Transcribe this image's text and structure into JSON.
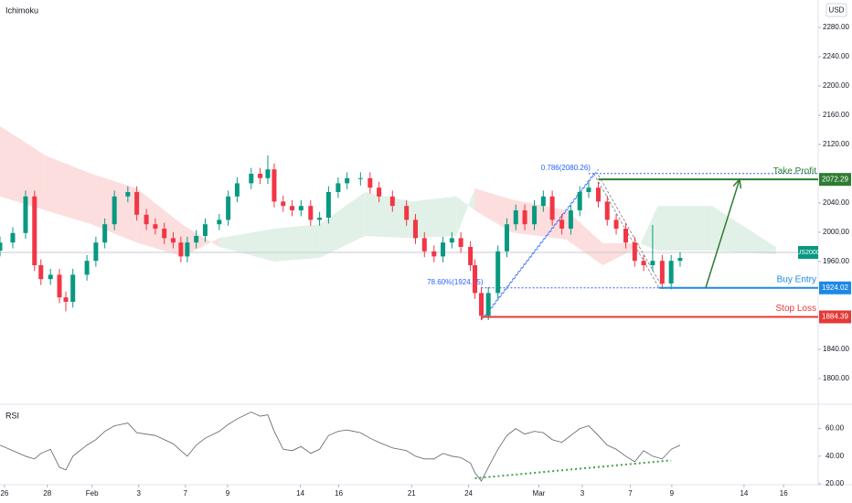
{
  "chart_data": {
    "type": "candlestick",
    "indicator_label": "Ichimoku",
    "currency": "USD",
    "xlim": [
      0,
      128
    ],
    "xticks": [
      {
        "value": 0.7,
        "label": "26"
      },
      {
        "value": 7.4,
        "label": "28"
      },
      {
        "value": 14.4,
        "label": "Feb"
      },
      {
        "value": 21.7,
        "label": "3"
      },
      {
        "value": 29,
        "label": "7"
      },
      {
        "value": 35.6,
        "label": "9"
      },
      {
        "value": 47,
        "label": "14"
      },
      {
        "value": 53,
        "label": "16"
      },
      {
        "value": 64.4,
        "label": "21"
      },
      {
        "value": 73.3,
        "label": "24"
      },
      {
        "value": 84.3,
        "label": "Mar"
      },
      {
        "value": 91.1,
        "label": "3"
      },
      {
        "value": 98.6,
        "label": "7"
      },
      {
        "value": 105.1,
        "label": "9"
      },
      {
        "value": 116.4,
        "label": "14"
      },
      {
        "value": 122.6,
        "label": "16"
      }
    ],
    "ylim": [
      1767.5,
      2317.5
    ],
    "yticks": [
      {
        "value": 1800,
        "label": "1800.00"
      },
      {
        "value": 1840,
        "label": "1840.00"
      },
      {
        "value": 1960,
        "label": "1960.00"
      },
      {
        "value": 2000,
        "label": "2000.00"
      },
      {
        "value": 2040,
        "label": "2040.00"
      },
      {
        "value": 2120,
        "label": "2120.00"
      },
      {
        "value": 2160,
        "label": "2160.00"
      },
      {
        "value": 2200,
        "label": "2200.00"
      },
      {
        "value": 2240,
        "label": "2240.00"
      },
      {
        "value": 2280,
        "label": "2280.00"
      }
    ],
    "candles": {
      "up_color": "#089981",
      "down_color": "#f23645",
      "x": [
        0,
        2,
        4,
        5.4,
        6.4,
        7.9,
        9.3,
        10.3,
        11.4,
        13.6,
        15,
        16.4,
        17.9,
        20,
        21.4,
        22.9,
        24.3,
        25.7,
        27.1,
        28.3,
        29.3,
        30.7,
        32.1,
        34.3,
        35.7,
        37.1,
        39.3,
        40.7,
        41.9,
        42.9,
        44.3,
        45.7,
        47.1,
        48.6,
        50,
        51.4,
        52.9,
        54.3,
        56.4,
        57.9,
        59.3,
        61.4,
        63.6,
        65,
        66.4,
        67.9,
        69.3,
        70.7,
        72.1,
        73.6,
        74.3,
        75.3,
        76.4,
        77.9,
        79.3,
        80.7,
        82.1,
        83.6,
        85,
        86.4,
        87.9,
        89.3,
        90.7,
        92.1,
        93.6,
        95,
        96.4,
        97.9,
        99.3,
        100.7,
        102.1,
        103.6,
        105,
        106.4
      ],
      "open": [
        1975,
        1986,
        1999,
        2049,
        1955,
        1936,
        1942,
        1911,
        1905,
        1942,
        1961,
        1986,
        2011,
        2049,
        2055,
        2024,
        2011,
        2005,
        1992,
        1986,
        1967,
        1986,
        1995,
        2011,
        2017,
        2049,
        2067,
        2080,
        2074,
        2086,
        2042,
        2036,
        2030,
        2036,
        2017,
        2020,
        2055,
        2067,
        2074,
        2074,
        2061,
        2049,
        2036,
        2017,
        1992,
        1974,
        1967,
        1986,
        1992,
        1980,
        1955,
        1917,
        1886,
        1917,
        1974,
        2011,
        2030,
        2011,
        2036,
        2049,
        2017,
        2005,
        2030,
        2055,
        2061,
        2042,
        2017,
        2005,
        1986,
        1961,
        1955,
        1961,
        1930,
        1961
      ],
      "high": [
        1994,
        2007,
        2057,
        2057,
        1963,
        1950,
        1950,
        1919,
        1950,
        1969,
        1994,
        2019,
        2057,
        2063,
        2063,
        2032,
        2019,
        2013,
        2000,
        1994,
        1994,
        2003,
        2019,
        2025,
        2057,
        2075,
        2088,
        2088,
        2105,
        2094,
        2050,
        2044,
        2044,
        2044,
        2028,
        2063,
        2075,
        2082,
        2082,
        2082,
        2069,
        2057,
        2044,
        2025,
        2000,
        1982,
        1994,
        2000,
        2000,
        1988,
        1963,
        1925,
        1925,
        1982,
        2019,
        2038,
        2038,
        2044,
        2057,
        2057,
        2025,
        2038,
        2063,
        2069,
        2069,
        2050,
        2025,
        2013,
        1994,
        1969,
        2010,
        1969,
        1969,
        1973
      ],
      "low": [
        1967,
        1978,
        1991,
        1947,
        1928,
        1928,
        1903,
        1892,
        1897,
        1934,
        1953,
        1978,
        2003,
        2041,
        2016,
        2003,
        1997,
        1984,
        1978,
        1959,
        1959,
        1978,
        1987,
        2003,
        2009,
        2041,
        2059,
        2066,
        2066,
        2034,
        2028,
        2022,
        2022,
        2009,
        2009,
        2012,
        2047,
        2059,
        2064,
        2053,
        2041,
        2028,
        2009,
        1984,
        1966,
        1959,
        1959,
        1978,
        1972,
        1947,
        1909,
        1880,
        1880,
        1909,
        1966,
        2003,
        2003,
        2003,
        2028,
        2009,
        1997,
        1997,
        2022,
        2047,
        2034,
        2009,
        1997,
        1978,
        1953,
        1947,
        1947,
        1924,
        1922,
        1953
      ],
      "close": [
        1986,
        1999,
        2049,
        1955,
        1936,
        1942,
        1911,
        1905,
        1942,
        1961,
        1986,
        2011,
        2049,
        2055,
        2024,
        2011,
        2005,
        1992,
        1986,
        1967,
        1986,
        1995,
        2011,
        2017,
        2049,
        2067,
        2080,
        2074,
        2086,
        2042,
        2036,
        2030,
        2036,
        2017,
        2020,
        2055,
        2067,
        2074,
        2074,
        2061,
        2049,
        2036,
        2017,
        1992,
        1974,
        1967,
        1986,
        1992,
        1980,
        1955,
        1917,
        1886,
        1917,
        1974,
        2011,
        2030,
        2011,
        2036,
        2049,
        2017,
        2005,
        2030,
        2055,
        2061,
        2042,
        2017,
        2005,
        1986,
        1961,
        1955,
        1961,
        1930,
        1961,
        1965
      ]
    },
    "cloud": {
      "up_color": "#e2f1e7",
      "down_color": "#fcdede",
      "x": [
        0,
        7.1,
        14.3,
        21.4,
        28.6,
        34.3,
        42.9,
        50,
        57.1,
        64.3,
        71.4,
        74.3,
        80,
        88.6,
        94.3,
        100,
        102.9,
        111.4,
        121.4
      ],
      "span_a": [
        2049,
        2030,
        2011,
        1986,
        1967,
        1992,
        2005,
        2011,
        2055,
        2042,
        2049,
        2030,
        2000,
        1990,
        1955,
        1980,
        2036,
        2036,
        1980
      ],
      "span_b": [
        2145,
        2105,
        2080,
        2060,
        2010,
        1980,
        1960,
        1965,
        1995,
        1992,
        1995,
        2060,
        2045,
        2030,
        1985,
        1985,
        1975,
        1975,
        1970
      ]
    },
    "current_price": {
      "label": "US2000",
      "value": 1972.5,
      "color": "#089981"
    },
    "levels": [
      {
        "label": "Take Profit",
        "value": 2072.29,
        "color": "#2e7d32",
        "x_start": 93.6
      },
      {
        "label": "Buy Entry",
        "value": 1924.02,
        "color": "#1e88e5",
        "x_start": 103.1
      },
      {
        "label": "Stop Loss",
        "value": 1884.39,
        "color": "#e53935",
        "x_start": 75.3
      }
    ],
    "fib_levels": [
      {
        "label": "0.786(2080.26)",
        "value": 2080.26,
        "x_start": 92.1,
        "color": "#2962ff"
      },
      {
        "label": "78.60%(1924.05)",
        "value": 1924.05,
        "x_start": 75.3,
        "x_end": 103.1,
        "color": "#2962ff"
      }
    ],
    "trend_lines": [
      {
        "x": [
          75.3,
          92.9
        ],
        "values": [
          1880,
          2080
        ],
        "color": "#2962ff"
      },
      {
        "x": [
          92.9,
          103.1
        ],
        "values": [
          2080,
          1924
        ],
        "color": "#787b86"
      }
    ],
    "arrow": {
      "x": [
        110.4,
        115.7
      ],
      "values": [
        1924.02,
        2072.29
      ],
      "color": "#2e7d32"
    },
    "rsi": {
      "label": "RSI",
      "color": "#5d606b",
      "ylim": [
        20,
        75
      ],
      "yticks": [
        {
          "value": 20,
          "label": "20.00"
        },
        {
          "value": 40,
          "label": "40.00"
        },
        {
          "value": 60,
          "label": "60.00"
        }
      ],
      "values": [
        48,
        44,
        40,
        38,
        42,
        45,
        32,
        30,
        40,
        48,
        52,
        58,
        62,
        64,
        57,
        56,
        55,
        52,
        49,
        44,
        40,
        48,
        53,
        58,
        63,
        67,
        72,
        69,
        70,
        58,
        45,
        44,
        47,
        42,
        45,
        55,
        58,
        59,
        57,
        53,
        50,
        46,
        44,
        40,
        38,
        38,
        42,
        40,
        39,
        35,
        28,
        22,
        32,
        45,
        55,
        60,
        56,
        58,
        57,
        52,
        50,
        55,
        60,
        62,
        55,
        48,
        45,
        40,
        36,
        44,
        40,
        38,
        45,
        48
      ],
      "trend_line": {
        "x": [
          74.3,
          105
        ],
        "values": [
          24,
          37
        ],
        "color": "#43a047"
      }
    }
  }
}
